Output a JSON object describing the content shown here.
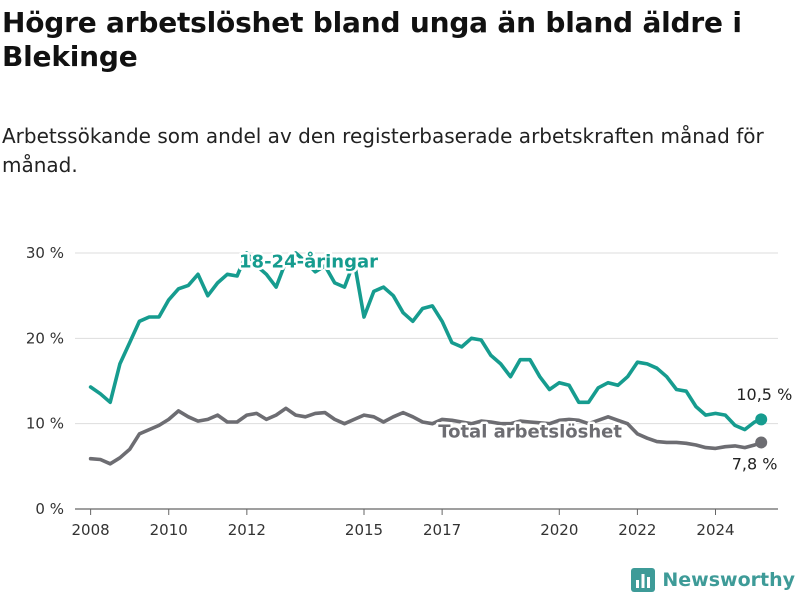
{
  "header": {
    "title": "Högre arbetslöshet bland unga än bland äldre i Blekinge",
    "subtitle": "Arbetssökande som andel av den registerbaserade arbetskraften månad för månad."
  },
  "brand": {
    "name": "Newsworthy",
    "icon": "bar-chart-logo-icon",
    "color": "#3e9b98"
  },
  "chart_data": {
    "type": "line",
    "ylim": [
      0,
      30
    ],
    "xlim": [
      2007.6,
      2025.6
    ],
    "y_ticks": [
      0,
      10,
      20,
      30
    ],
    "y_tick_labels": [
      "0 %",
      "10 %",
      "20 %",
      "30 %"
    ],
    "x_ticks": [
      2008,
      2010,
      2012,
      2015,
      2017,
      2020,
      2022,
      2024
    ],
    "x_tick_labels": [
      "2008",
      "2010",
      "2012",
      "2015",
      "2017",
      "2020",
      "2022",
      "2024"
    ],
    "grid": "horizontal",
    "series": [
      {
        "name": "18-24-åringar",
        "color": "#169c8f",
        "end_label": "10,5 %",
        "x": [
          2008.0,
          2008.25,
          2008.5,
          2008.75,
          2009.0,
          2009.25,
          2009.5,
          2009.75,
          2010.0,
          2010.25,
          2010.5,
          2010.75,
          2011.0,
          2011.25,
          2011.5,
          2011.75,
          2012.0,
          2012.25,
          2012.5,
          2012.75,
          2013.0,
          2013.25,
          2013.5,
          2013.75,
          2014.0,
          2014.25,
          2014.5,
          2014.75,
          2015.0,
          2015.25,
          2015.5,
          2015.75,
          2016.0,
          2016.25,
          2016.5,
          2016.75,
          2017.0,
          2017.25,
          2017.5,
          2017.75,
          2018.0,
          2018.25,
          2018.5,
          2018.75,
          2019.0,
          2019.25,
          2019.5,
          2019.75,
          2020.0,
          2020.25,
          2020.5,
          2020.75,
          2021.0,
          2021.25,
          2021.5,
          2021.75,
          2022.0,
          2022.25,
          2022.5,
          2022.75,
          2023.0,
          2023.25,
          2023.5,
          2023.75,
          2024.0,
          2024.25,
          2024.5,
          2024.75,
          2025.0,
          2025.17
        ],
        "values": [
          14.3,
          13.5,
          12.5,
          17.0,
          19.5,
          22.0,
          22.5,
          22.5,
          24.5,
          25.8,
          26.2,
          27.5,
          25.0,
          26.5,
          27.5,
          27.3,
          30.0,
          28.5,
          27.5,
          26.0,
          29.0,
          30.0,
          29.0,
          27.8,
          28.5,
          26.5,
          26.0,
          29.0,
          22.5,
          25.5,
          26.0,
          25.0,
          23.0,
          22.0,
          23.5,
          23.8,
          22.0,
          19.5,
          19.0,
          20.0,
          19.8,
          18.0,
          17.0,
          15.5,
          17.5,
          17.5,
          15.5,
          14.0,
          14.8,
          14.5,
          12.5,
          12.5,
          14.2,
          14.8,
          14.5,
          15.5,
          17.2,
          17.0,
          16.5,
          15.5,
          14.0,
          13.8,
          12.0,
          11.0,
          11.2,
          11.0,
          9.8,
          9.3,
          10.2,
          10.5
        ]
      },
      {
        "name": "Total arbetslöshet",
        "color": "#6d6d72",
        "end_label": "7,8 %",
        "x": [
          2008.0,
          2008.25,
          2008.5,
          2008.75,
          2009.0,
          2009.25,
          2009.5,
          2009.75,
          2010.0,
          2010.25,
          2010.5,
          2010.75,
          2011.0,
          2011.25,
          2011.5,
          2011.75,
          2012.0,
          2012.25,
          2012.5,
          2012.75,
          2013.0,
          2013.25,
          2013.5,
          2013.75,
          2014.0,
          2014.25,
          2014.5,
          2014.75,
          2015.0,
          2015.25,
          2015.5,
          2015.75,
          2016.0,
          2016.25,
          2016.5,
          2016.75,
          2017.0,
          2017.25,
          2017.5,
          2017.75,
          2018.0,
          2018.25,
          2018.5,
          2018.75,
          2019.0,
          2019.25,
          2019.5,
          2019.75,
          2020.0,
          2020.25,
          2020.5,
          2020.75,
          2021.0,
          2021.25,
          2021.5,
          2021.75,
          2022.0,
          2022.25,
          2022.5,
          2022.75,
          2023.0,
          2023.25,
          2023.5,
          2023.75,
          2024.0,
          2024.25,
          2024.5,
          2024.75,
          2025.0,
          2025.17
        ],
        "values": [
          5.9,
          5.8,
          5.3,
          6.0,
          7.0,
          8.8,
          9.3,
          9.8,
          10.5,
          11.5,
          10.8,
          10.3,
          10.5,
          11.0,
          10.2,
          10.2,
          11.0,
          11.2,
          10.5,
          11.0,
          11.8,
          11.0,
          10.8,
          11.2,
          11.3,
          10.5,
          10.0,
          10.5,
          11.0,
          10.8,
          10.2,
          10.8,
          11.3,
          10.8,
          10.2,
          10.0,
          10.5,
          10.4,
          10.2,
          10.0,
          10.3,
          10.2,
          10.0,
          10.0,
          10.3,
          10.2,
          10.1,
          10.0,
          10.4,
          10.5,
          10.4,
          10.0,
          10.4,
          10.8,
          10.4,
          10.0,
          8.8,
          8.3,
          7.9,
          7.8,
          7.8,
          7.7,
          7.5,
          7.2,
          7.1,
          7.3,
          7.4,
          7.2,
          7.5,
          7.8
        ]
      }
    ]
  }
}
